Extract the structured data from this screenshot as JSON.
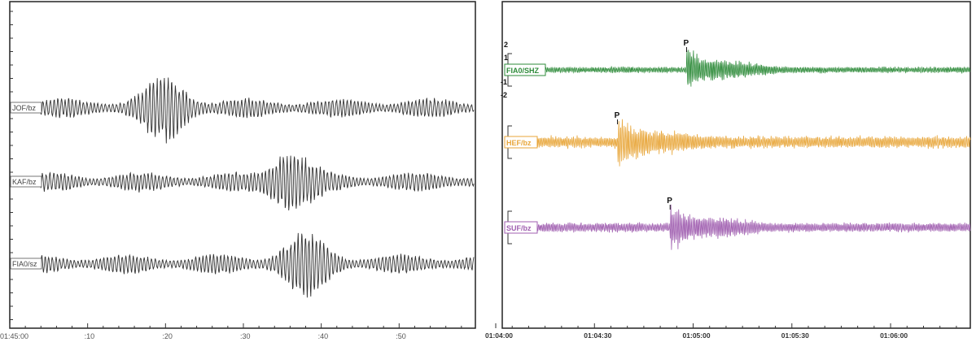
{
  "chart_data": [
    {
      "type": "line",
      "title": "",
      "xlabel": "",
      "ylabel": "",
      "x_ticks": [
        "01:45:00",
        ":10",
        ":20",
        ":30",
        ":40",
        ":50"
      ],
      "xlim_seconds": [
        0,
        58
      ],
      "series": [
        {
          "name": "JOF/bz",
          "color": "#333333",
          "burst_center_s": 20,
          "peak_rel": 1.0
        },
        {
          "name": "KAF/bz",
          "color": "#333333",
          "burst_center_s": 36,
          "peak_rel": 1.0
        },
        {
          "name": "FIA0/sz",
          "color": "#333333",
          "burst_center_s": 38,
          "peak_rel": 1.0
        }
      ]
    },
    {
      "type": "line",
      "title": "",
      "xlabel": "",
      "ylabel": "",
      "x_ticks": [
        "01:04:00",
        "01:04:30",
        "01:05:00",
        "01:05:30",
        "01:06:00"
      ],
      "xlim_seconds": [
        0,
        142
      ],
      "amplitude_ticks": [
        "2",
        "1",
        "-1",
        "-2"
      ],
      "series": [
        {
          "name": "FIA0/SHZ",
          "color": "#2e8b3a",
          "p_arrival_s": 58,
          "pick_label": "P"
        },
        {
          "name": "HEF/bz",
          "color": "#e8a63a",
          "p_arrival_s": 37,
          "pick_label": "P"
        },
        {
          "name": "SUF/bz",
          "color": "#a05fb0",
          "p_arrival_s": 53,
          "pick_label": "P"
        }
      ]
    }
  ]
}
